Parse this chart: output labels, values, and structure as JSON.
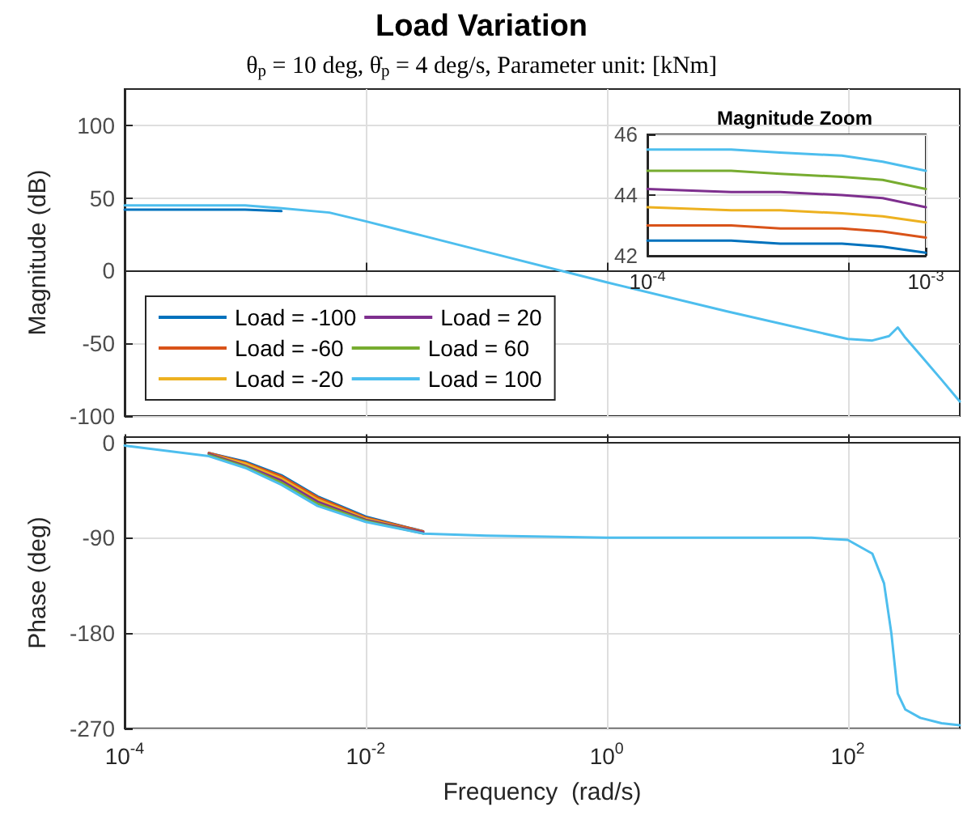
{
  "chart_data": [
    {
      "type": "line",
      "title": "Load Variation",
      "subtitle": "θ$_{p}$ = 10 deg, θ̇$_{p}$ = 4 deg/s, Parameter unit: [kNm]",
      "ylabel": "Magnitude (dB)",
      "log": "x",
      "x": [
        0.0001,
        0.0003,
        0.001,
        0.002,
        0.005,
        0.01,
        0.03,
        0.1,
        1,
        10,
        100,
        160,
        220,
        260,
        300,
        400,
        600,
        850
      ],
      "xlim": [
        0.0001,
        850
      ],
      "xticks": [
        {
          "value": 0.0001,
          "label": null
        },
        {
          "value": 0.01,
          "label": null
        },
        {
          "value": 1,
          "label": null
        },
        {
          "value": 100,
          "label": null
        }
      ],
      "ylim": [
        -100,
        125
      ],
      "yticks": [
        -100,
        -50,
        0,
        50,
        100
      ],
      "grid": true,
      "legend": "bottom left",
      "tick_labels": "y",
      "series": [
        {
          "name": "Load = -100",
          "color": "#0072bd",
          "values": [
            42,
            42,
            42,
            41,
            null,
            null,
            null,
            null,
            null,
            null,
            null,
            null,
            null,
            null,
            null,
            null,
            null,
            null
          ]
        },
        {
          "name": "Load = -60",
          "color": "#d95319",
          "values": [
            null,
            null,
            null,
            null,
            null,
            null,
            null,
            null,
            null,
            null,
            null,
            null,
            null,
            null,
            null,
            null,
            null,
            null
          ]
        },
        {
          "name": "Load = -20",
          "color": "#edb120",
          "values": [
            null,
            null,
            null,
            null,
            null,
            null,
            null,
            null,
            null,
            null,
            null,
            null,
            null,
            null,
            null,
            null,
            null,
            null
          ]
        },
        {
          "name": "Load = 20",
          "color": "#7e2f8e",
          "values": [
            null,
            null,
            null,
            null,
            null,
            null,
            null,
            null,
            null,
            null,
            null,
            null,
            null,
            null,
            null,
            null,
            null,
            null
          ]
        },
        {
          "name": "Load = 60",
          "color": "#77ac30",
          "values": [
            null,
            null,
            null,
            null,
            null,
            null,
            null,
            null,
            null,
            null,
            null,
            null,
            null,
            null,
            null,
            null,
            null,
            null
          ]
        },
        {
          "name": "Load = 100",
          "color": "#4dbeee",
          "values": [
            45,
            45,
            45,
            43,
            40,
            34,
            24,
            13,
            -8,
            -28,
            -47,
            -48,
            -45,
            -39,
            -46,
            -58,
            -75,
            -90
          ]
        }
      ]
    },
    {
      "type": "line",
      "title": "Magnitude Zoom",
      "log": "x",
      "x": [
        0.0001,
        0.0002,
        0.0003,
        0.0005,
        0.0007,
        0.001
      ],
      "xlim": [
        0.0001,
        0.001
      ],
      "xticks": [
        {
          "value": 0.0001,
          "label": "10$^{-4}$"
        },
        {
          "value": 0.001,
          "label": "10$^{-3}$"
        }
      ],
      "ylim": [
        42,
        46
      ],
      "yticks": [
        42,
        44,
        46
      ],
      "grid": true,
      "series": [
        {
          "color": "#0072bd",
          "values": [
            42.5,
            42.5,
            42.4,
            42.4,
            42.3,
            42.1
          ]
        },
        {
          "color": "#d95319",
          "values": [
            43.0,
            43.0,
            42.9,
            42.9,
            42.8,
            42.6
          ]
        },
        {
          "color": "#edb120",
          "values": [
            43.6,
            43.5,
            43.5,
            43.4,
            43.3,
            43.1
          ]
        },
        {
          "color": "#7e2f8e",
          "values": [
            44.2,
            44.1,
            44.1,
            44.0,
            43.9,
            43.6
          ]
        },
        {
          "color": "#77ac30",
          "values": [
            44.8,
            44.8,
            44.7,
            44.6,
            44.5,
            44.2
          ]
        },
        {
          "color": "#4dbeee",
          "values": [
            45.5,
            45.5,
            45.4,
            45.3,
            45.1,
            44.8
          ]
        }
      ]
    },
    {
      "type": "line",
      "xlabel": "Frequency  (rad/s)",
      "ylabel": "Phase (deg)",
      "log": "x",
      "x": [
        0.0001,
        0.0005,
        0.001,
        0.002,
        0.004,
        0.01,
        0.03,
        0.1,
        1,
        10,
        50,
        100,
        160,
        200,
        230,
        260,
        300,
        400,
        600,
        850
      ],
      "xlim": [
        0.0001,
        850
      ],
      "xticks": [
        {
          "value": 0.0001,
          "label": "10$^{-4}$"
        },
        {
          "value": 0.01,
          "label": "10$^{-2}$"
        },
        {
          "value": 1,
          "label": "10$^{0}$"
        },
        {
          "value": 100,
          "label": "10$^{2}$"
        }
      ],
      "ylim": [
        -270,
        5
      ],
      "yticks": [
        -270,
        -180,
        -90,
        0
      ],
      "grid": true,
      "series": [
        {
          "color": "#0072bd",
          "values": [
            null,
            -10,
            -18,
            -31,
            -51,
            -70,
            -84,
            null,
            null,
            null,
            null,
            null,
            null,
            null,
            null,
            null,
            null,
            null,
            null,
            null
          ]
        },
        {
          "color": "#d95319",
          "values": [
            null,
            -10,
            -19,
            -32,
            -52,
            -71,
            -84,
            null,
            null,
            null,
            null,
            null,
            null,
            null,
            null,
            null,
            null,
            null,
            null,
            null
          ]
        },
        {
          "color": "#edb120",
          "values": [
            null,
            -11,
            -20,
            -34,
            -54,
            -72,
            -85,
            null,
            null,
            null,
            null,
            null,
            null,
            null,
            null,
            null,
            null,
            null,
            null,
            null
          ]
        },
        {
          "color": "#7e2f8e",
          "values": [
            null,
            -11,
            -22,
            -36,
            -56,
            -73,
            -85,
            null,
            null,
            null,
            null,
            null,
            null,
            null,
            null,
            null,
            null,
            null,
            null,
            null
          ]
        },
        {
          "color": "#77ac30",
          "values": [
            null,
            -12,
            -23,
            -38,
            -58,
            -74,
            -86,
            null,
            null,
            null,
            null,
            null,
            null,
            null,
            null,
            null,
            null,
            null,
            null,
            null
          ]
        },
        {
          "color": "#4dbeee",
          "values": [
            -3,
            -13,
            -24,
            -40,
            -60,
            -75,
            -86,
            -88,
            -90,
            -90,
            -90,
            -92,
            -105,
            -133,
            -180,
            -237,
            -252,
            -260,
            -265,
            -267
          ]
        }
      ]
    }
  ]
}
